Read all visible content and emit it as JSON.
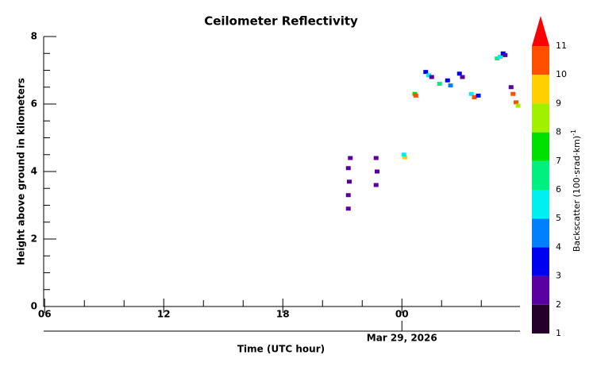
{
  "chart_data": {
    "type": "heatmap",
    "title": "Ceilometer Reflectivity",
    "xlabel": "Time (UTC hour)",
    "ylabel": "Height above ground in kilometers",
    "date_label": "Mar 29, 2026",
    "date_at": 24,
    "xlim": [
      5.95,
      29.95
    ],
    "xticks": [
      {
        "value": 6,
        "label": "06"
      },
      12,
      18,
      {
        "value": 24,
        "label": "00"
      }
    ],
    "xminor": [
      8,
      10,
      14,
      16,
      20,
      22,
      26,
      28
    ],
    "ylim": [
      0,
      8
    ],
    "yticks": [
      0,
      2,
      4,
      6,
      8
    ],
    "yminor": [
      0.5,
      1,
      1.5,
      2.5,
      3,
      3.5,
      4.5,
      5,
      5.5,
      6.5,
      7,
      7.5
    ],
    "x": [
      21.3,
      21.3,
      21.35,
      21.3,
      21.4,
      22.7,
      22.75,
      22.7,
      24.15,
      24.1,
      24.65,
      24.7,
      25.2,
      25.35,
      25.5,
      25.9,
      26.3,
      26.45,
      26.9,
      27.05,
      27.5,
      27.65,
      27.85,
      28.8,
      28.95,
      29.1,
      29.2,
      29.5,
      29.6,
      29.75,
      29.85
    ],
    "y": [
      2.9,
      3.3,
      3.7,
      4.1,
      4.4,
      3.6,
      4.0,
      4.4,
      4.42,
      4.5,
      6.3,
      6.25,
      6.95,
      6.85,
      6.8,
      6.6,
      6.7,
      6.55,
      6.9,
      6.8,
      6.3,
      6.2,
      6.25,
      7.35,
      7.4,
      7.5,
      7.45,
      6.5,
      6.3,
      6.05,
      5.95
    ],
    "values": [
      2.5,
      2.8,
      2.6,
      2.3,
      2.2,
      2.5,
      2.7,
      2.4,
      9.5,
      5.5,
      7.5,
      10.2,
      3.2,
      5.5,
      2.8,
      6.5,
      3.1,
      4.5,
      3.3,
      2.6,
      5.5,
      10.3,
      3.1,
      6.2,
      5.2,
      3.4,
      2.5,
      2.8,
      10.4,
      10.6,
      8.5
    ],
    "colorbar": {
      "label": "Backscatter (100·srad·km)",
      "label_exponent": "-1",
      "ticks": [
        1,
        2,
        3,
        4,
        5,
        6,
        7,
        8,
        9,
        10,
        11
      ],
      "colors": [
        "#24002a",
        "#5a00a0",
        "#0000f0",
        "#0080ff",
        "#00f0f0",
        "#00f080",
        "#00e000",
        "#a0f000",
        "#ffd000",
        "#ff5000"
      ],
      "extend_color": "#ff0000"
    }
  }
}
